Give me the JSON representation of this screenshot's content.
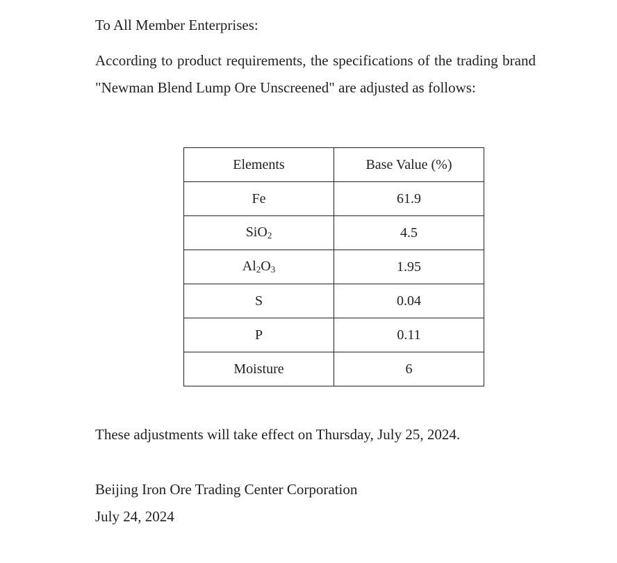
{
  "salutation": "To All Member Enterprises:",
  "intro": "According to product requirements, the specifications of the trading brand \"Newman Blend Lump Ore Unscreened\" are adjusted as follows:",
  "table": {
    "headers": [
      "Elements",
      "Base Value (%)"
    ],
    "rows": [
      {
        "element": "Fe",
        "value": "61.9"
      },
      {
        "element": "SiO",
        "sub1": "2",
        "value": "4.5"
      },
      {
        "element": "Al",
        "sub1": "2",
        "mid": "O",
        "sub2": "3",
        "value": "1.95"
      },
      {
        "element": "S",
        "value": "0.04"
      },
      {
        "element": "P",
        "value": "0.11"
      },
      {
        "element": "Moisture",
        "value": "6"
      }
    ]
  },
  "effective": "These adjustments will take effect on Thursday, July 25, 2024.",
  "signature": "Beijing Iron Ore Trading Center Corporation",
  "date": "July 24, 2024"
}
